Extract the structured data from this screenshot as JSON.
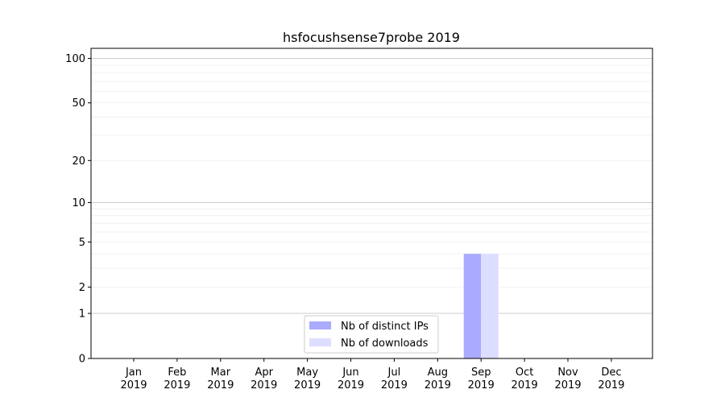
{
  "chart_data": {
    "type": "bar",
    "title": "hsfocushsense7probe 2019",
    "xlabel": "",
    "ylabel": "",
    "y_scale": "log10(1+y)",
    "ylim": [
      0,
      117
    ],
    "yticks": [
      0,
      1,
      2,
      5,
      10,
      20,
      50,
      100
    ],
    "ytick_labels": [
      "0",
      "1",
      "2",
      "5",
      "10",
      "20",
      "50",
      "100"
    ],
    "grid": true,
    "legend_position": "bottom-center",
    "categories": [
      "Jan\n2019",
      "Feb\n2019",
      "Mar\n2019",
      "Apr\n2019",
      "May\n2019",
      "Jun\n2019",
      "Jul\n2019",
      "Aug\n2019",
      "Sep\n2019",
      "Oct\n2019",
      "Nov\n2019",
      "Dec\n2019"
    ],
    "series": [
      {
        "name": "Nb of distinct IPs",
        "color": "#aaaaff",
        "values": [
          0,
          0,
          0,
          0,
          0,
          0,
          0,
          0,
          4,
          0,
          0,
          0
        ]
      },
      {
        "name": "Nb of downloads",
        "color": "#ddddff",
        "values": [
          0,
          0,
          0,
          0,
          0,
          0,
          0,
          0,
          4,
          0,
          0,
          0
        ]
      }
    ]
  }
}
